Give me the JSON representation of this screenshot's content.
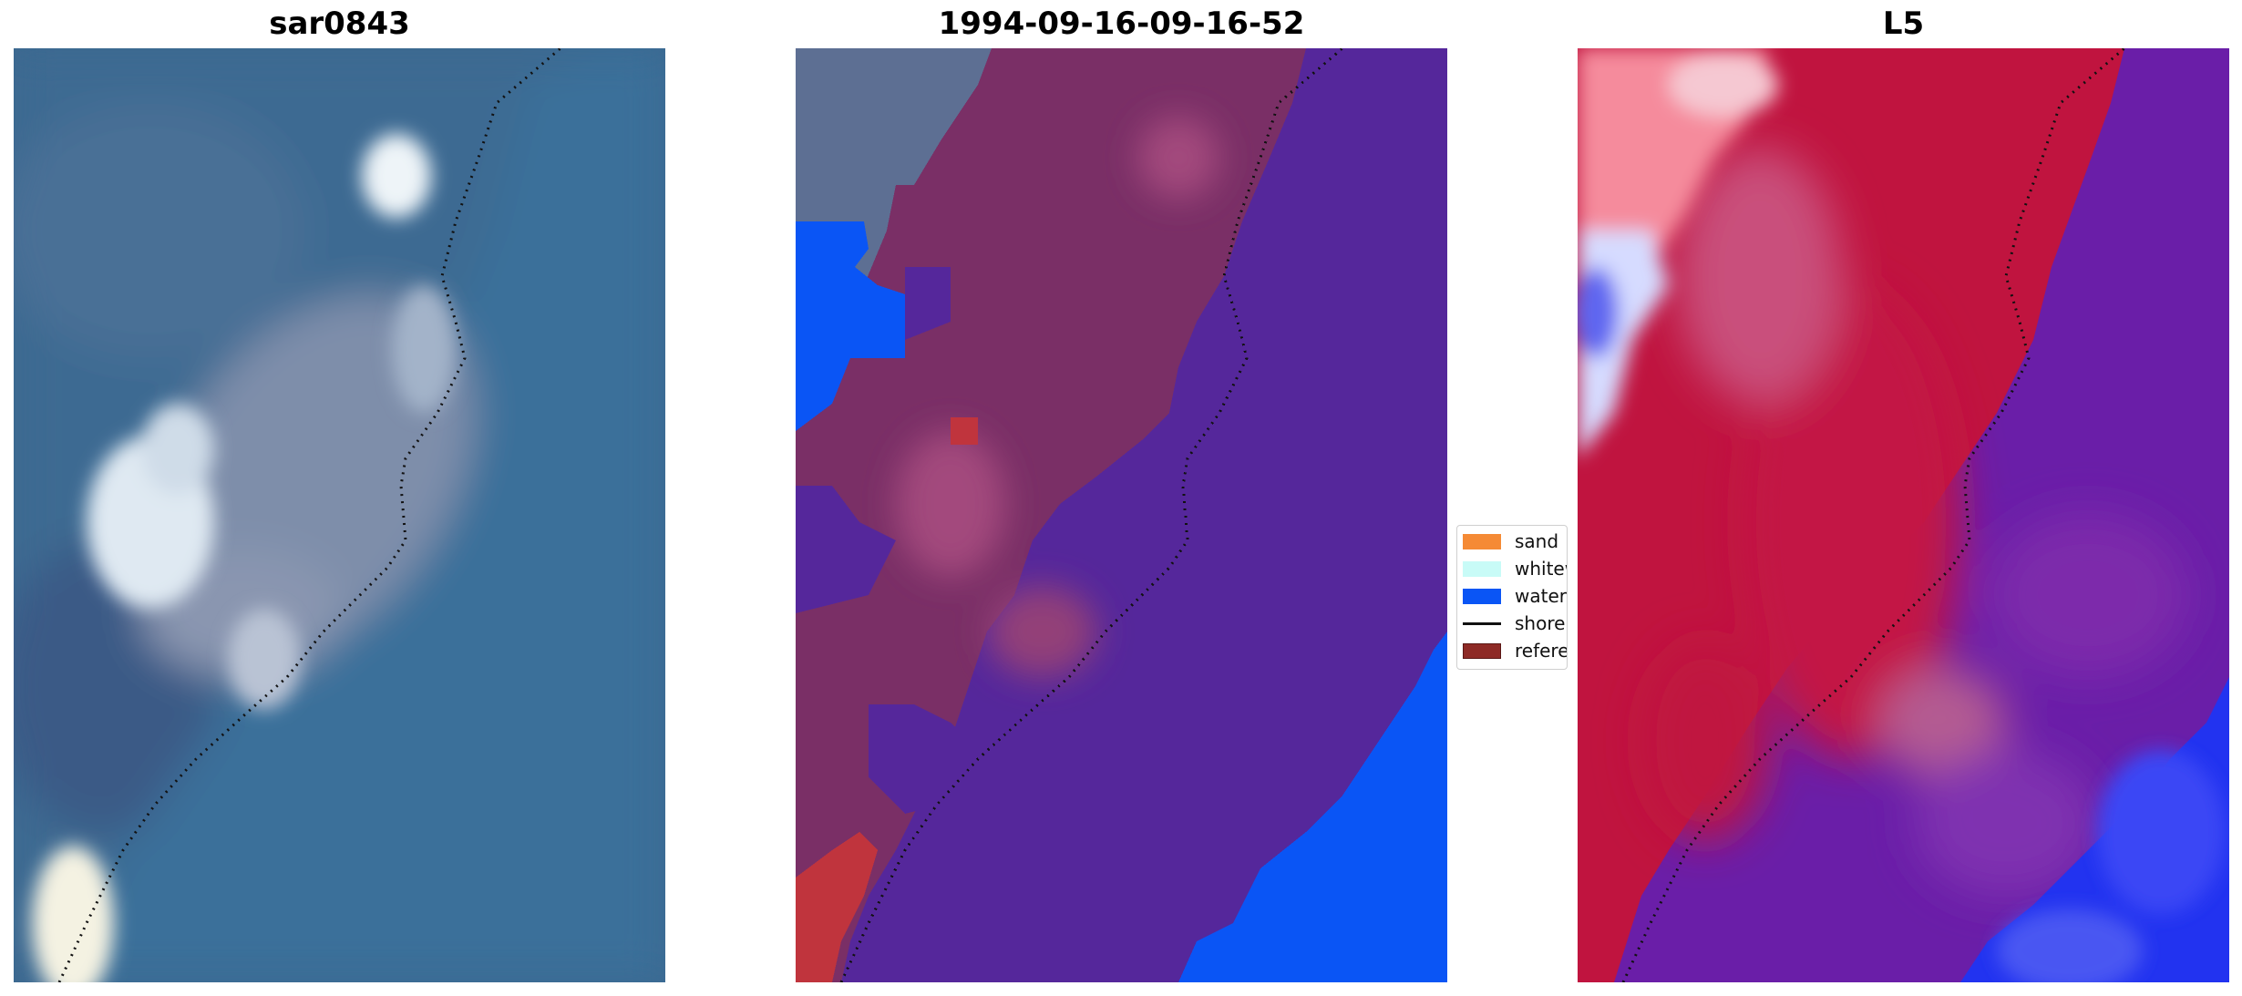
{
  "panels": [
    {
      "title": "sar0843"
    },
    {
      "title": "1994-09-16-09-16-52"
    },
    {
      "title": "L5"
    }
  ],
  "legend": {
    "items": [
      {
        "label": "sand",
        "color": "#f58a35",
        "kind": "patch"
      },
      {
        "label": "whitewater",
        "color": "#c8fbf7",
        "kind": "patch"
      },
      {
        "label": "water",
        "color": "#0a55f5",
        "kind": "patch"
      },
      {
        "label": "shoreline",
        "color": "#111111",
        "kind": "line"
      },
      {
        "label": "reference shoreline",
        "color": "#8e2a26",
        "kind": "patch"
      }
    ]
  },
  "colors": {
    "sea": "#3f6b92",
    "class_sand_overlay": "#7a2f66",
    "class_water_overlay": "#55279b",
    "index_red": "#c0143f",
    "index_purple": "#6a1ea8",
    "index_blue": "#1e2cf5"
  }
}
